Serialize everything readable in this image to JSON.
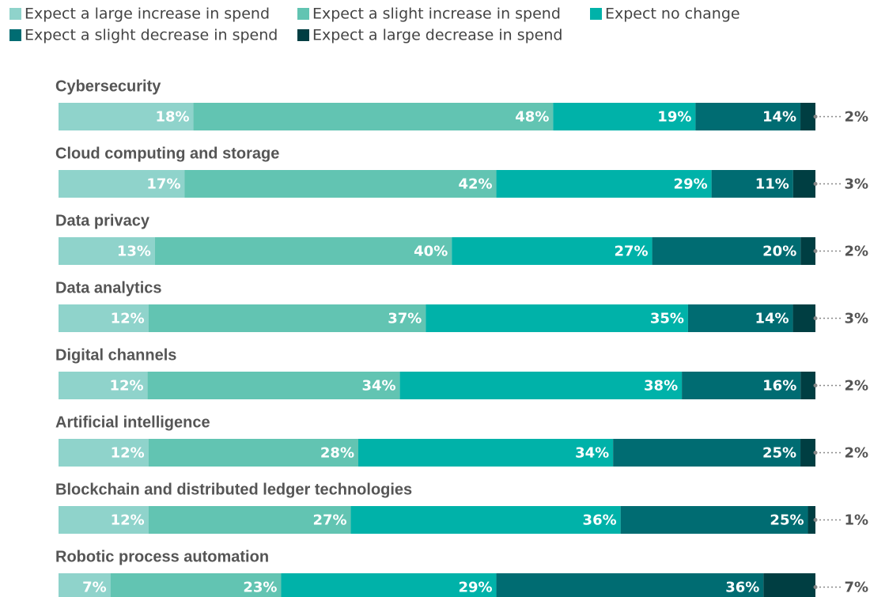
{
  "chart_data": {
    "type": "bar",
    "orientation": "horizontal",
    "stacked": true,
    "categories": [
      "Cybersecurity",
      "Cloud computing and storage",
      "Data privacy",
      "Data analytics",
      "Digital channels",
      "Artificial intelligence",
      "Blockchain and distributed ledger technologies",
      "Robotic process automation"
    ],
    "series": [
      {
        "name": "Expect a large increase in spend",
        "color": "#8fd3cb",
        "values": [
          18,
          17,
          13,
          12,
          12,
          12,
          12,
          7
        ],
        "value_labels": [
          "18%",
          "17%",
          "13%",
          "12%",
          "12%",
          "12%",
          "12%",
          "7%"
        ]
      },
      {
        "name": "Expect a slight increase in spend",
        "color": "#62c4b2",
        "values": [
          48,
          42,
          40,
          37,
          34,
          28,
          27,
          23
        ],
        "value_labels": [
          "48%",
          "42%",
          "40%",
          "37%",
          "34%",
          "28%",
          "27%",
          "23%"
        ]
      },
      {
        "name": "Expect no change",
        "color": "#00b2a9",
        "values": [
          19,
          29,
          27,
          35,
          38,
          34,
          36,
          29
        ],
        "value_labels": [
          "19%",
          "29%",
          "27%",
          "35%",
          "38%",
          "34%",
          "36%",
          "29%"
        ]
      },
      {
        "name": "Expect a slight decrease in spend",
        "color": "#006c72",
        "values": [
          14,
          11,
          20,
          14,
          16,
          25,
          25,
          36
        ],
        "value_labels": [
          "14%",
          "11%",
          "20%",
          "14%",
          "16%",
          "25%",
          "25%",
          "36%"
        ]
      },
      {
        "name": "Expect a large decrease in spend",
        "color": "#003e42",
        "values": [
          2,
          3,
          2,
          3,
          2,
          2,
          1,
          7
        ],
        "value_labels": [
          "2%",
          "3%",
          "2%",
          "3%",
          "2%",
          "2%",
          "1%",
          "7%"
        ]
      }
    ]
  }
}
